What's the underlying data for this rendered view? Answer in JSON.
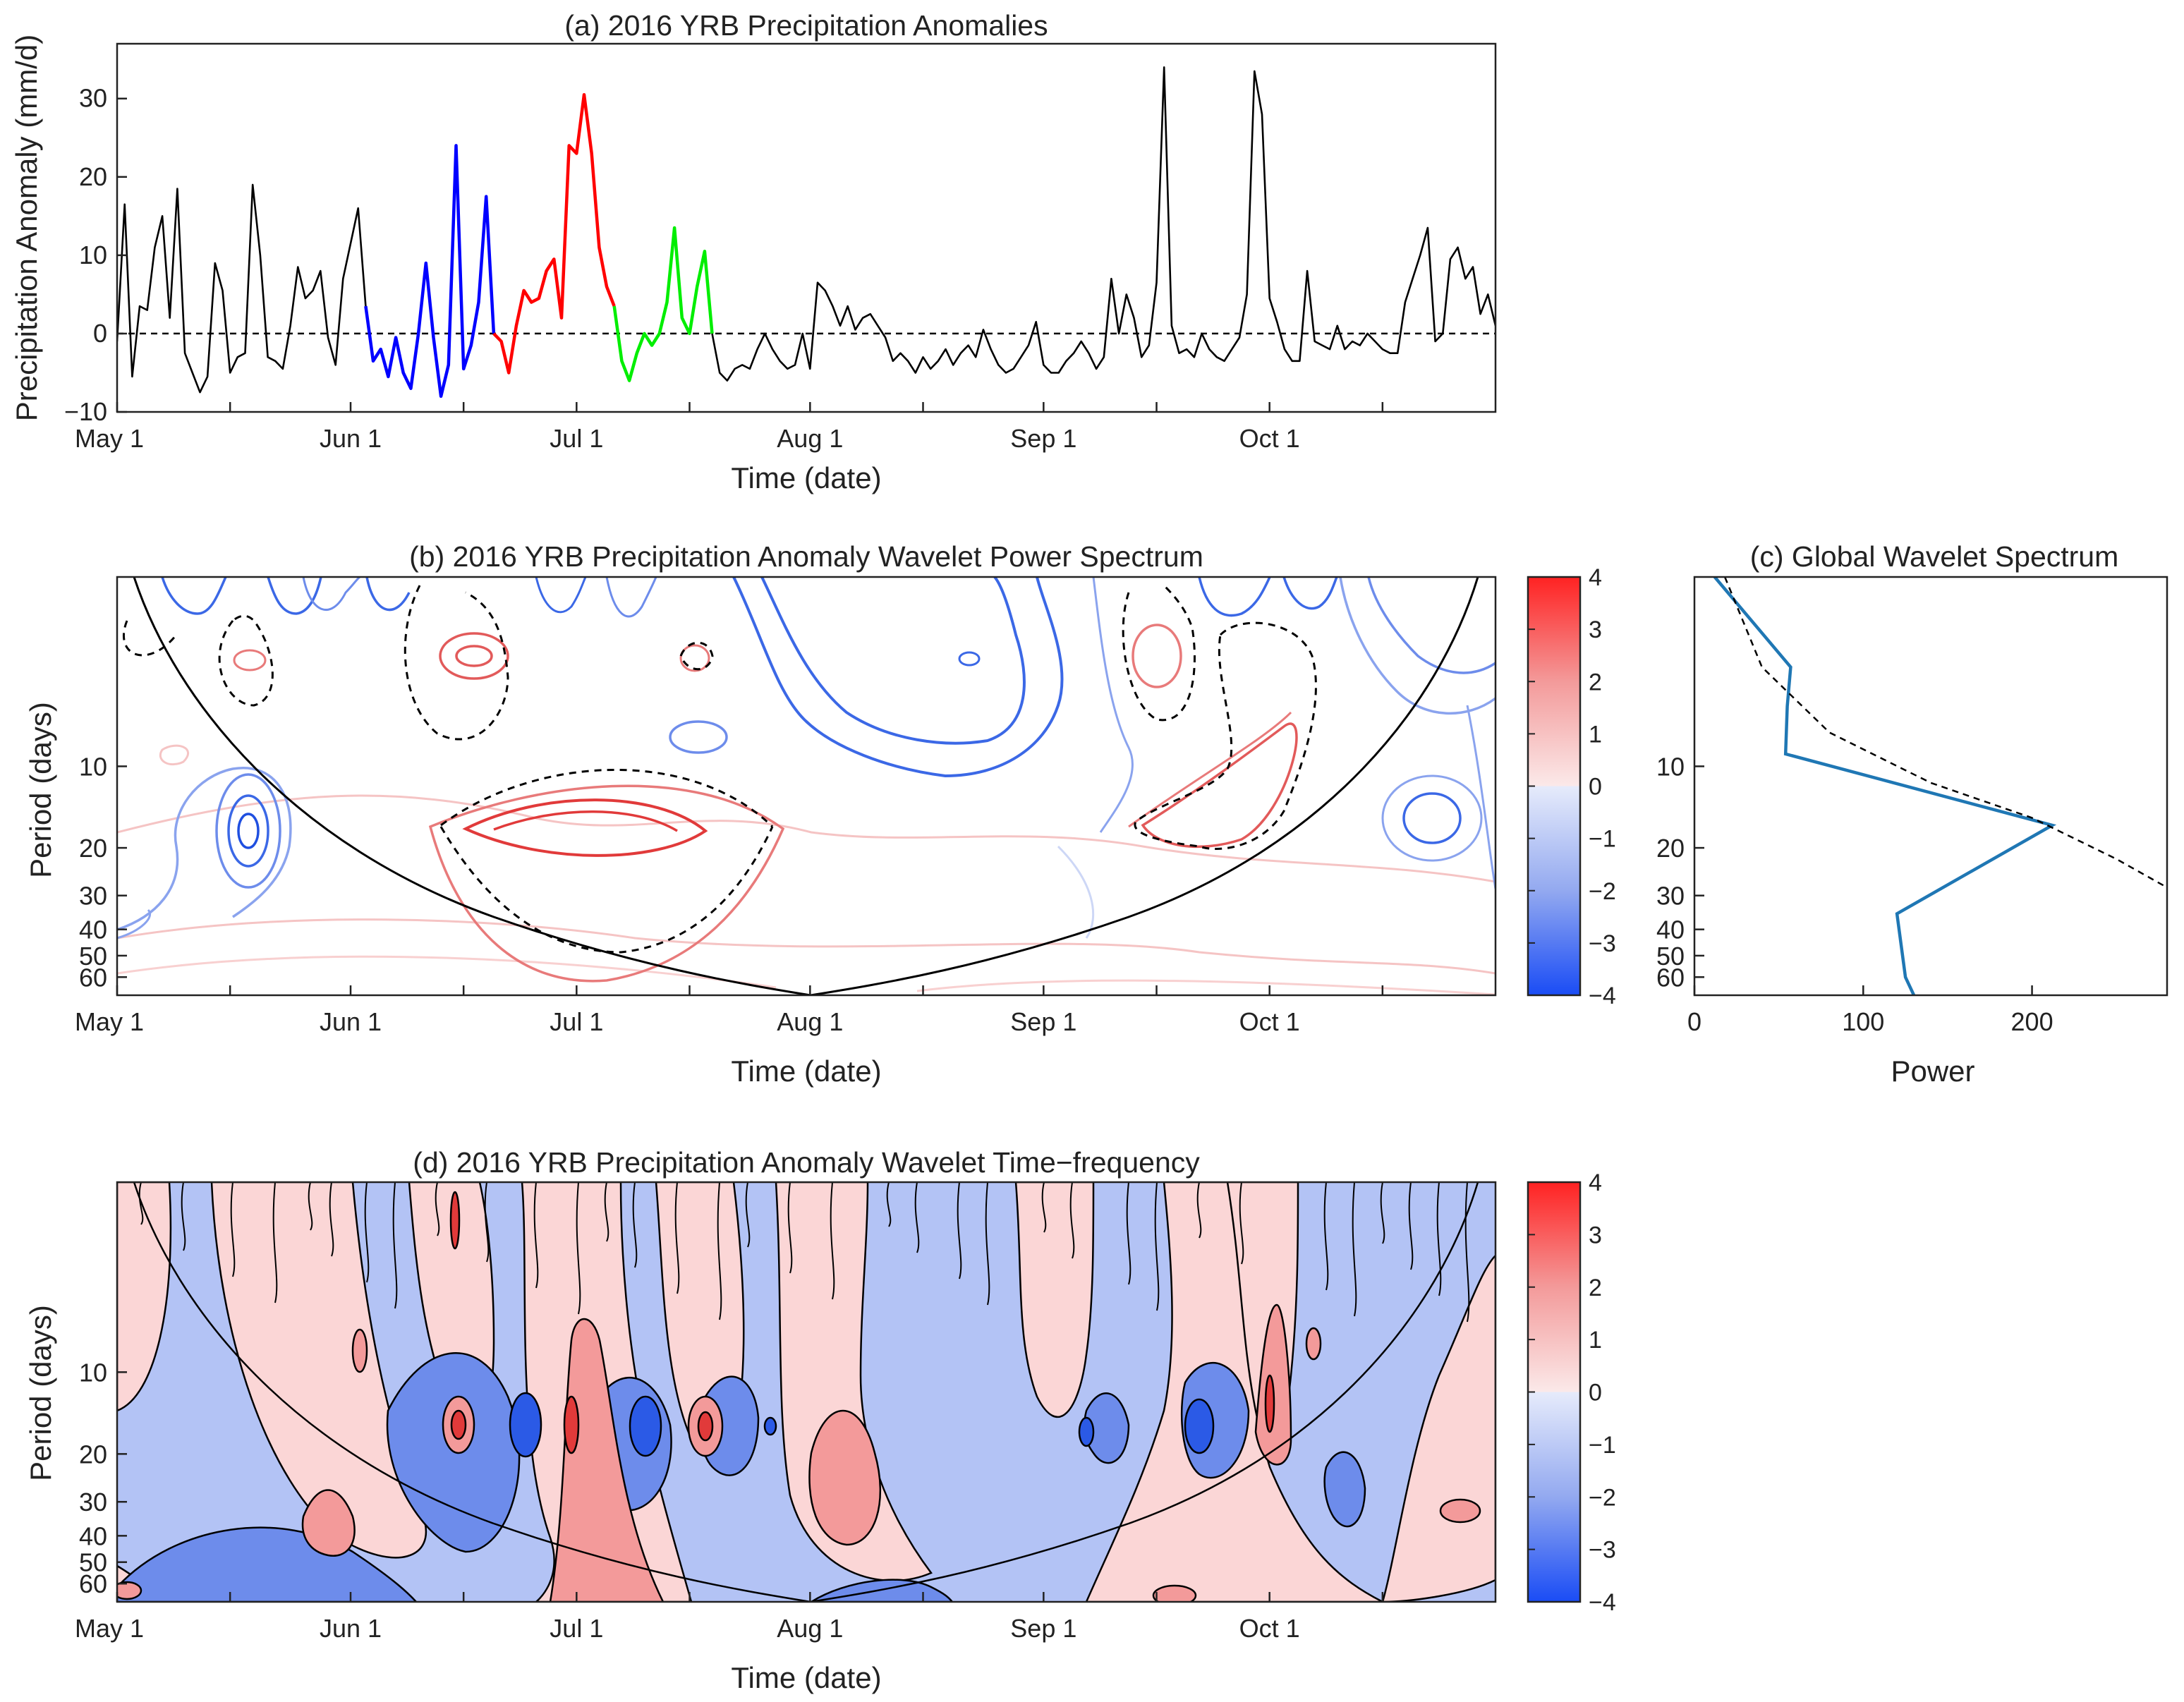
{
  "chart_data": [
    {
      "panel": "a",
      "type": "line",
      "title": "(a) 2016 YRB Precipitation Anomalies",
      "xlabel": "Time (date)",
      "ylabel": "Precipitation Anomaly (mm/d)",
      "xlim": [
        0,
        183
      ],
      "ylim": [
        -10,
        37
      ],
      "yticks": [
        -10,
        0,
        10,
        20,
        30
      ],
      "xticks": [
        {
          "day": 0,
          "label": "May 1"
        },
        {
          "day": 31,
          "label": "Jun 1"
        },
        {
          "day": 61,
          "label": "Jul 1"
        },
        {
          "day": 92,
          "label": "Aug 1"
        },
        {
          "day": 123,
          "label": "Sep 1"
        },
        {
          "day": 153,
          "label": "Oct 1"
        },
        {
          "day": 15
        },
        {
          "day": 46
        },
        {
          "day": 76
        },
        {
          "day": 107
        },
        {
          "day": 138
        },
        {
          "day": 168
        }
      ],
      "reference_line": 0,
      "series": [
        {
          "name": "background",
          "color": "#000000",
          "points": [
            [
              0,
              -1
            ],
            [
              1,
              16.5
            ],
            [
              2,
              -5.5
            ],
            [
              3,
              3.5
            ],
            [
              4,
              3
            ],
            [
              5,
              11
            ],
            [
              6,
              15
            ],
            [
              7,
              2
            ],
            [
              8,
              18.5
            ],
            [
              9,
              -2.5
            ],
            [
              10,
              -5
            ],
            [
              11,
              -7.5
            ],
            [
              12,
              -5.5
            ],
            [
              13,
              9
            ],
            [
              14,
              5.5
            ],
            [
              15,
              -5
            ],
            [
              16,
              -3
            ],
            [
              17,
              -2.5
            ],
            [
              18,
              19
            ],
            [
              19,
              10
            ],
            [
              20,
              -3
            ],
            [
              21,
              -3.5
            ],
            [
              22,
              -4.5
            ],
            [
              23,
              1
            ],
            [
              24,
              8.5
            ],
            [
              25,
              4.5
            ],
            [
              26,
              5.5
            ],
            [
              27,
              8
            ],
            [
              28,
              -0.5
            ],
            [
              29,
              -4
            ],
            [
              30,
              7
            ],
            [
              31,
              11.5
            ],
            [
              32,
              16
            ],
            [
              33,
              3.5
            ]
          ]
        },
        {
          "name": "event-blue",
          "color": "#0000ff",
          "points": [
            [
              33,
              3.5
            ],
            [
              34,
              -3.5
            ],
            [
              35,
              -2
            ],
            [
              36,
              -5.5
            ],
            [
              37,
              -0.5
            ],
            [
              38,
              -5
            ],
            [
              39,
              -7
            ],
            [
              40,
              0
            ],
            [
              41,
              9
            ],
            [
              42,
              -0.5
            ],
            [
              43,
              -8
            ],
            [
              44,
              -4
            ],
            [
              45,
              24
            ],
            [
              46,
              -4.5
            ],
            [
              47,
              -1.5
            ],
            [
              48,
              4
            ],
            [
              49,
              17.5
            ],
            [
              50,
              0
            ]
          ]
        },
        {
          "name": "event-red",
          "color": "#ff0000",
          "points": [
            [
              50,
              0
            ],
            [
              51,
              -1
            ],
            [
              52,
              -5
            ],
            [
              53,
              1
            ],
            [
              54,
              5.5
            ],
            [
              55,
              4
            ],
            [
              56,
              4.5
            ],
            [
              57,
              8
            ],
            [
              58,
              9.5
            ],
            [
              59,
              2
            ],
            [
              60,
              24
            ],
            [
              61,
              23
            ],
            [
              62,
              30.5
            ],
            [
              63,
              23
            ],
            [
              64,
              11
            ],
            [
              65,
              6
            ],
            [
              66,
              3.5
            ]
          ]
        },
        {
          "name": "event-green",
          "color": "#00ee00",
          "points": [
            [
              66,
              3.5
            ],
            [
              67,
              -3.5
            ],
            [
              68,
              -6
            ],
            [
              69,
              -2.5
            ],
            [
              70,
              0
            ],
            [
              71,
              -1.5
            ],
            [
              72,
              0
            ],
            [
              73,
              4
            ],
            [
              74,
              13.5
            ],
            [
              75,
              2
            ],
            [
              76,
              0
            ],
            [
              77,
              6
            ],
            [
              78,
              10.5
            ],
            [
              79,
              0
            ]
          ]
        },
        {
          "name": "background-late",
          "color": "#000000",
          "points": [
            [
              79,
              0
            ],
            [
              80,
              -5
            ],
            [
              81,
              -6
            ],
            [
              82,
              -4.5
            ],
            [
              83,
              -4
            ],
            [
              84,
              -4.5
            ],
            [
              85,
              -2
            ],
            [
              86,
              0
            ],
            [
              87,
              -2
            ],
            [
              88,
              -3.5
            ],
            [
              89,
              -4.5
            ],
            [
              90,
              -4
            ],
            [
              91,
              0
            ],
            [
              92,
              -4.5
            ],
            [
              93,
              6.5
            ],
            [
              94,
              5.5
            ],
            [
              95,
              3.5
            ],
            [
              96,
              1
            ],
            [
              97,
              3.5
            ],
            [
              98,
              0.5
            ],
            [
              99,
              2
            ],
            [
              100,
              2.5
            ],
            [
              101,
              1
            ],
            [
              102,
              -0.5
            ],
            [
              103,
              -3.5
            ],
            [
              104,
              -2.5
            ],
            [
              105,
              -3.5
            ],
            [
              106,
              -5
            ],
            [
              107,
              -3
            ],
            [
              108,
              -4.5
            ],
            [
              109,
              -3.5
            ],
            [
              110,
              -2
            ],
            [
              111,
              -4
            ],
            [
              112,
              -2.5
            ],
            [
              113,
              -1.5
            ],
            [
              114,
              -3
            ],
            [
              115,
              0.5
            ],
            [
              116,
              -2
            ],
            [
              117,
              -4
            ],
            [
              118,
              -5
            ],
            [
              119,
              -4.5
            ],
            [
              120,
              -3
            ],
            [
              121,
              -1.5
            ],
            [
              122,
              1.5
            ],
            [
              123,
              -4
            ],
            [
              124,
              -5
            ],
            [
              125,
              -5
            ],
            [
              126,
              -3.5
            ],
            [
              127,
              -2.5
            ],
            [
              128,
              -1
            ],
            [
              129,
              -2.5
            ],
            [
              130,
              -4.5
            ],
            [
              131,
              -3
            ],
            [
              132,
              7
            ],
            [
              133,
              0
            ],
            [
              134,
              5
            ],
            [
              135,
              2
            ],
            [
              136,
              -3
            ],
            [
              137,
              -1.5
            ],
            [
              138,
              6.5
            ],
            [
              139,
              34
            ],
            [
              140,
              1
            ],
            [
              141,
              -2.5
            ],
            [
              142,
              -2
            ],
            [
              143,
              -3
            ],
            [
              144,
              0
            ],
            [
              145,
              -2
            ],
            [
              146,
              -3
            ],
            [
              147,
              -3.5
            ],
            [
              148,
              -2
            ],
            [
              149,
              -0.5
            ],
            [
              150,
              5
            ],
            [
              151,
              33.5
            ],
            [
              152,
              28
            ],
            [
              153,
              4.5
            ],
            [
              154,
              1.5
            ],
            [
              155,
              -2
            ],
            [
              156,
              -3.5
            ],
            [
              157,
              -3.5
            ],
            [
              158,
              8
            ],
            [
              159,
              -1
            ],
            [
              160,
              -1.5
            ],
            [
              161,
              -2
            ],
            [
              162,
              1
            ],
            [
              163,
              -2
            ],
            [
              164,
              -1
            ],
            [
              165,
              -1.5
            ],
            [
              166,
              0
            ],
            [
              167,
              -1
            ],
            [
              168,
              -2
            ],
            [
              169,
              -2.5
            ],
            [
              170,
              -2.5
            ],
            [
              171,
              4
            ],
            [
              172,
              7
            ],
            [
              173,
              10
            ],
            [
              174,
              13.5
            ],
            [
              175,
              -1
            ],
            [
              176,
              0
            ],
            [
              177,
              9.5
            ],
            [
              178,
              11
            ],
            [
              179,
              7
            ],
            [
              180,
              8.5
            ],
            [
              181,
              2.5
            ],
            [
              182,
              5
            ],
            [
              183,
              1
            ]
          ]
        }
      ]
    },
    {
      "panel": "b",
      "type": "heatmap",
      "title": "(b) 2016 YRB Precipitation Anomaly Wavelet Power Spectrum",
      "xlabel": "Time (date)",
      "ylabel": "Period (days)",
      "xlim": [
        0,
        183
      ],
      "period_range": [
        2,
        70
      ],
      "yticks": [
        10,
        20,
        30,
        40,
        50,
        60
      ],
      "xtick_labels": [
        "May 1",
        "Jun 1",
        "Jul 1",
        "Aug 1",
        "Sep 1",
        "Oct 1"
      ],
      "colorbar": {
        "range": [
          -4,
          4
        ],
        "ticks": [
          "4",
          "3",
          "2",
          "1",
          "0",
          "−1",
          "−2",
          "−3",
          "−4"
        ]
      }
    },
    {
      "panel": "c",
      "type": "line",
      "title": "(c) Global Wavelet Spectrum",
      "xlabel": "Power",
      "xlim": [
        0,
        280
      ],
      "xticks": [
        0,
        100,
        200
      ],
      "period_range": [
        2,
        70
      ],
      "yticks": [
        10,
        20,
        30,
        40,
        50,
        60
      ],
      "series": [
        {
          "name": "global-spectrum",
          "color": "#1f77b4",
          "points": [
            [
              12,
              2.0
            ],
            [
              57,
              4.3
            ],
            [
              55,
              6.0
            ],
            [
              54,
              9.0
            ],
            [
              212,
              16.5
            ],
            [
              120,
              35.0
            ],
            [
              125,
              60.0
            ],
            [
              130,
              70.0
            ]
          ]
        },
        {
          "name": "significance",
          "color": "#000000",
          "dashed": true,
          "points": [
            [
              18,
              2.0
            ],
            [
              40,
              4.3
            ],
            [
              80,
              7.5
            ],
            [
              140,
              11.5
            ],
            [
              200,
              15.5
            ],
            [
              250,
              22.0
            ],
            [
              280,
              28.0
            ]
          ]
        }
      ]
    },
    {
      "panel": "d",
      "type": "heatmap",
      "title": "(d) 2016 YRB Precipitation Anomaly Wavelet Time−frequency",
      "xlabel": "Time (date)",
      "ylabel": "Period (days)",
      "xlim": [
        0,
        183
      ],
      "period_range": [
        2,
        70
      ],
      "yticks": [
        10,
        20,
        30,
        40,
        50,
        60
      ],
      "xtick_labels": [
        "May 1",
        "Jun 1",
        "Jul 1",
        "Aug 1",
        "Sep 1",
        "Oct 1"
      ],
      "colorbar": {
        "range": [
          -4,
          4
        ],
        "ticks": [
          "4",
          "3",
          "2",
          "1",
          "0",
          "−1",
          "−2",
          "−3",
          "−4"
        ]
      }
    }
  ]
}
